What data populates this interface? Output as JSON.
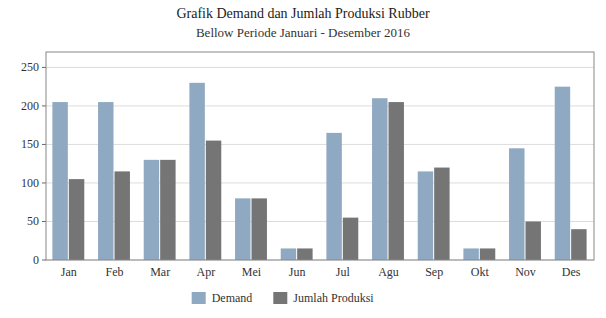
{
  "chart_data": {
    "type": "bar",
    "title": "Grafik Demand dan Jumlah Produksi Rubber",
    "subtitle": "Bellow Periode Januari - Desember 2016",
    "categories": [
      "Jan",
      "Feb",
      "Mar",
      "Apr",
      "Mei",
      "Jun",
      "Jul",
      "Agu",
      "Sep",
      "Okt",
      "Nov",
      "Des"
    ],
    "series": [
      {
        "name": "Demand",
        "color": "#8EA9C1",
        "values": [
          205,
          205,
          130,
          230,
          80,
          15,
          165,
          210,
          115,
          15,
          145,
          225
        ]
      },
      {
        "name": "Jumlah Produksi",
        "color": "#757575",
        "values": [
          105,
          115,
          130,
          155,
          80,
          15,
          55,
          205,
          120,
          15,
          50,
          40
        ]
      }
    ],
    "ylim": [
      0,
      270
    ],
    "yticks": [
      0,
      50,
      100,
      150,
      200,
      250
    ],
    "grid": true,
    "legend": "bottom"
  }
}
